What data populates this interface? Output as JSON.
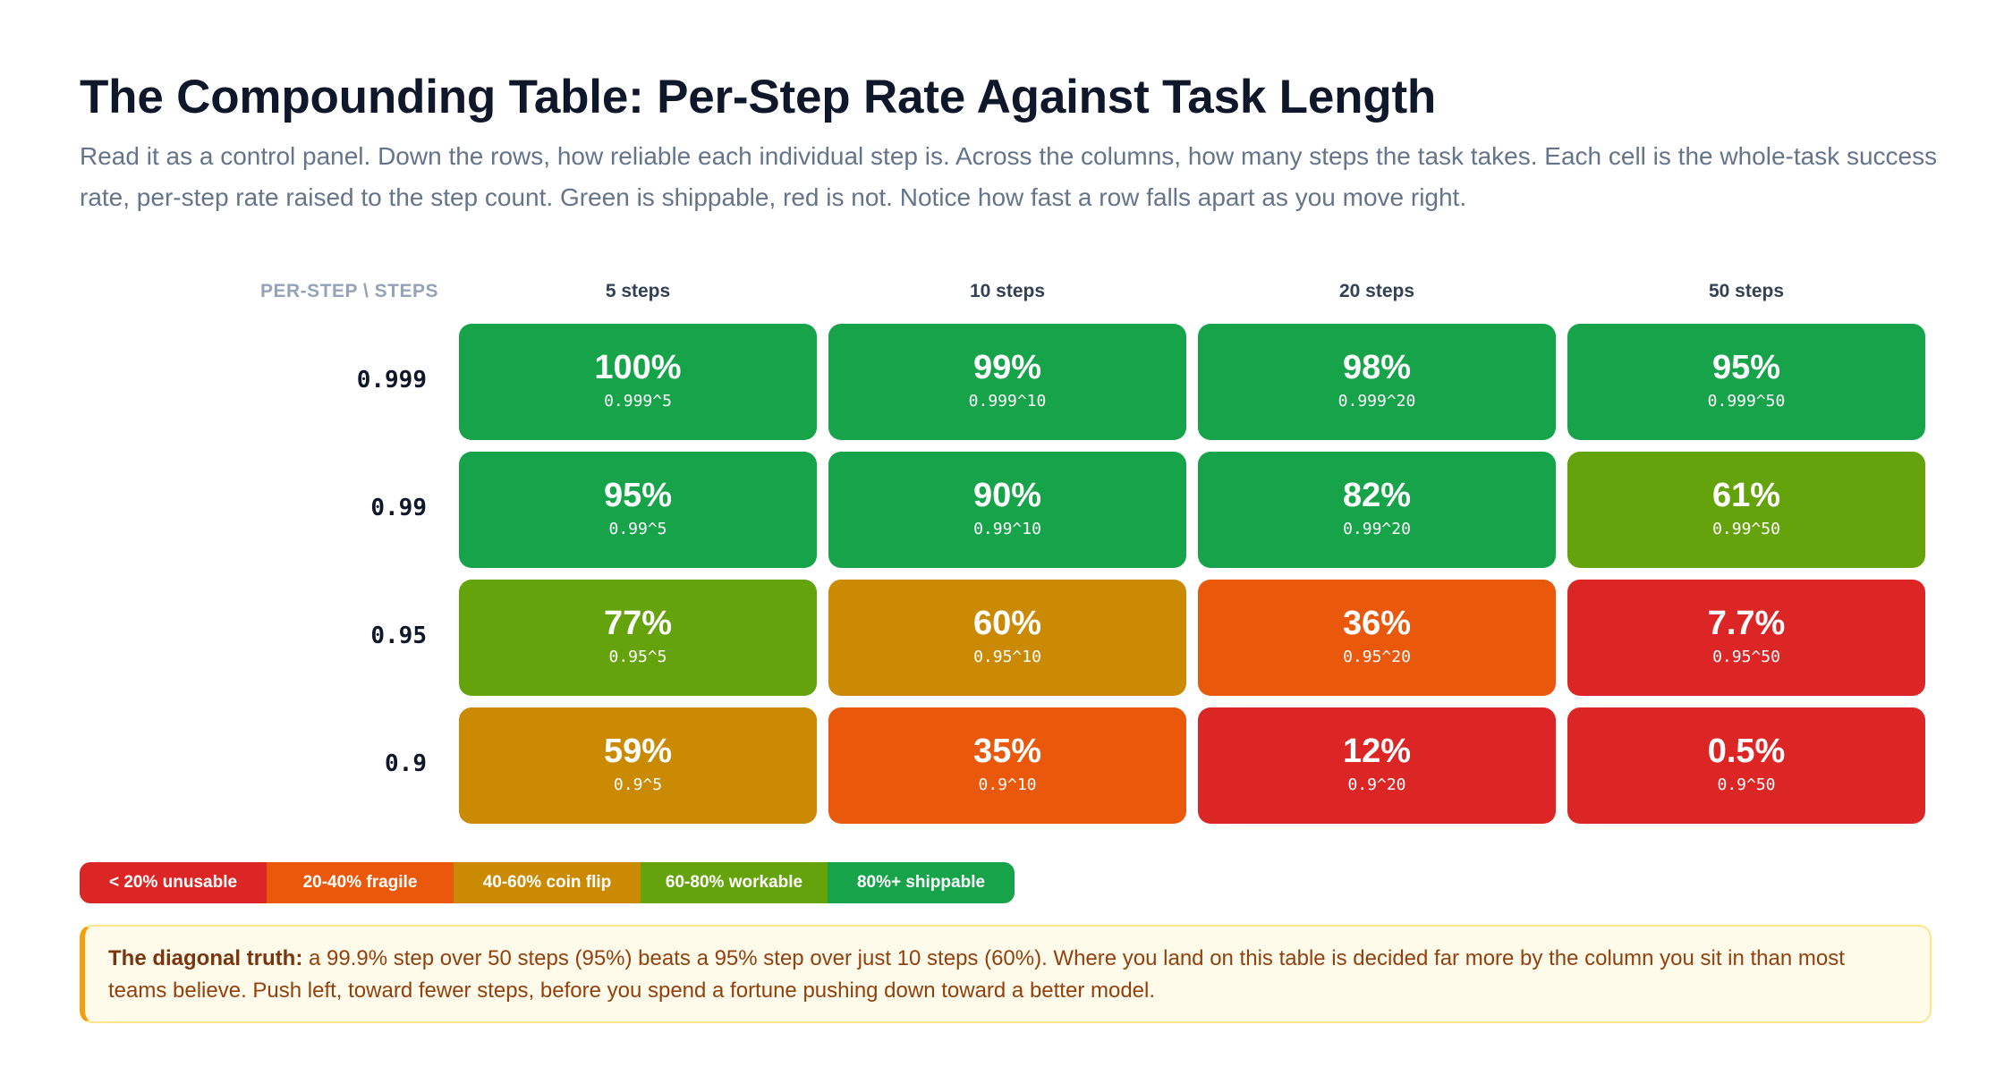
{
  "header": {
    "title": "The Compounding Table: Per-Step Rate Against Task Length",
    "subtitle": "Read it as a control panel. Down the rows, how reliable each individual step is. Across the columns, how many steps the task takes. Each cell is the whole-task success rate, per-step rate raised to the step count. Green is shippable, red is not. Notice how fast a row falls apart as you move right."
  },
  "chart_data": {
    "type": "heatmap",
    "corner_label": "PER-STEP \\ STEPS",
    "columns": [
      "5 steps",
      "10 steps",
      "20 steps",
      "50 steps"
    ],
    "rows": [
      "0.999",
      "0.99",
      "0.95",
      "0.9"
    ],
    "cells": [
      [
        {
          "value": "100%",
          "formula": "0.999^5",
          "band": "shippable"
        },
        {
          "value": "99%",
          "formula": "0.999^10",
          "band": "shippable"
        },
        {
          "value": "98%",
          "formula": "0.999^20",
          "band": "shippable"
        },
        {
          "value": "95%",
          "formula": "0.999^50",
          "band": "shippable"
        }
      ],
      [
        {
          "value": "95%",
          "formula": "0.99^5",
          "band": "shippable"
        },
        {
          "value": "90%",
          "formula": "0.99^10",
          "band": "shippable"
        },
        {
          "value": "82%",
          "formula": "0.99^20",
          "band": "shippable"
        },
        {
          "value": "61%",
          "formula": "0.99^50",
          "band": "workable"
        }
      ],
      [
        {
          "value": "77%",
          "formula": "0.95^5",
          "band": "workable"
        },
        {
          "value": "60%",
          "formula": "0.95^10",
          "band": "coinflip"
        },
        {
          "value": "36%",
          "formula": "0.95^20",
          "band": "fragile"
        },
        {
          "value": "7.7%",
          "formula": "0.95^50",
          "band": "unusable"
        }
      ],
      [
        {
          "value": "59%",
          "formula": "0.9^5",
          "band": "coinflip"
        },
        {
          "value": "35%",
          "formula": "0.9^10",
          "band": "fragile"
        },
        {
          "value": "12%",
          "formula": "0.9^20",
          "band": "unusable"
        },
        {
          "value": "0.5%",
          "formula": "0.9^50",
          "band": "unusable"
        }
      ]
    ],
    "legend": [
      {
        "label": "< 20% unusable",
        "band": "unusable",
        "color": "#dc2626"
      },
      {
        "label": "20-40% fragile",
        "band": "fragile",
        "color": "#ea580c"
      },
      {
        "label": "40-60% coin flip",
        "band": "coinflip",
        "color": "#ca8a04"
      },
      {
        "label": "60-80% workable",
        "band": "workable",
        "color": "#65a30d"
      },
      {
        "label": "80%+ shippable",
        "band": "shippable",
        "color": "#16a34a"
      }
    ]
  },
  "callout": {
    "lead": "The diagonal truth:",
    "text": " a 99.9% step over 50 steps (95%) beats a 95% step over just 10 steps (60%). Where you land on this table is decided far more by the column you sit in than most teams believe. Push left, toward fewer steps, before you spend a fortune pushing down toward a better model."
  }
}
